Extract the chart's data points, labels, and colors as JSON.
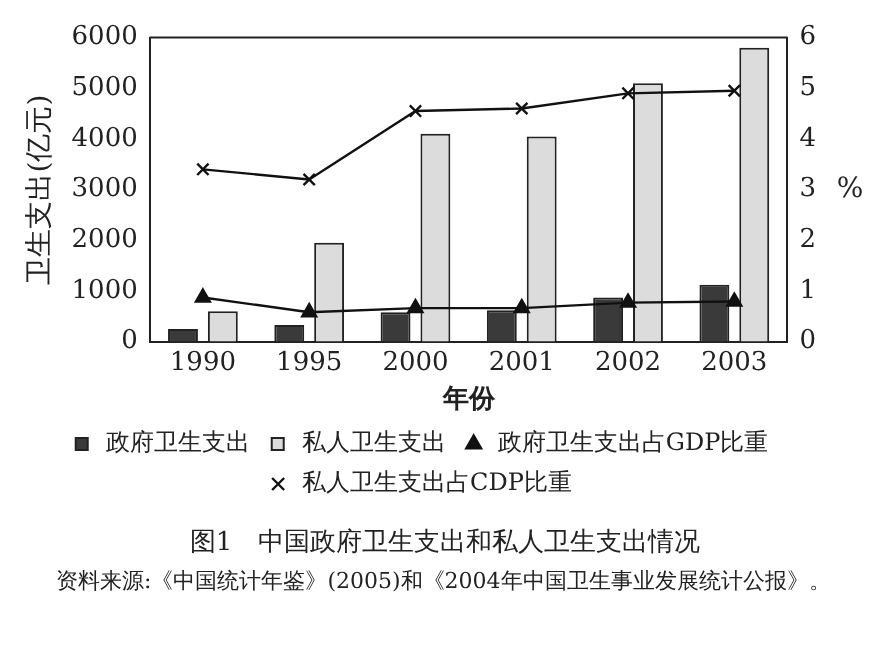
{
  "chart_data": {
    "type": "bar",
    "title": "图1　中国政府卫生支出和私人卫生支出情况",
    "xlabel": "年份",
    "ylabel": "卫生支出(亿元)",
    "y2label": "%",
    "categories": [
      "1990",
      "1995",
      "2000",
      "2001",
      "2002",
      "2003"
    ],
    "series": [
      {
        "name": "政府卫生支出",
        "color": "#3a3a3a",
        "values": [
          250,
          330,
          580,
          620,
          870,
          1120
        ]
      },
      {
        "name": "私人卫生支出",
        "color": "#dcdcdc",
        "values": [
          600,
          1950,
          4100,
          4050,
          5100,
          5800
        ]
      },
      {
        "name": "政府卫生支出占GDP比重",
        "type": "line",
        "axis": "y2",
        "marker": "triangle",
        "color": "#111111",
        "values": [
          0.87,
          0.58,
          0.66,
          0.66,
          0.77,
          0.79
        ]
      },
      {
        "name": "私人卫生支出占CDP比重",
        "type": "line",
        "axis": "y2",
        "marker": "cross",
        "color": "#111111",
        "values": [
          3.4,
          3.2,
          4.55,
          4.6,
          4.9,
          4.95
        ]
      }
    ],
    "ylim": [
      0,
      6000
    ],
    "yticks": [
      0,
      1000,
      2000,
      3000,
      4000,
      5000,
      6000
    ],
    "y2lim": [
      0,
      6
    ],
    "y2ticks": [
      0,
      1,
      2,
      3,
      4,
      5,
      6
    ],
    "grid": false,
    "legend": "bottom",
    "annotations": [
      "资料来源:《中国统计年鉴》(2005)和《2004年中国卫生事业发展统计公报》。"
    ]
  }
}
